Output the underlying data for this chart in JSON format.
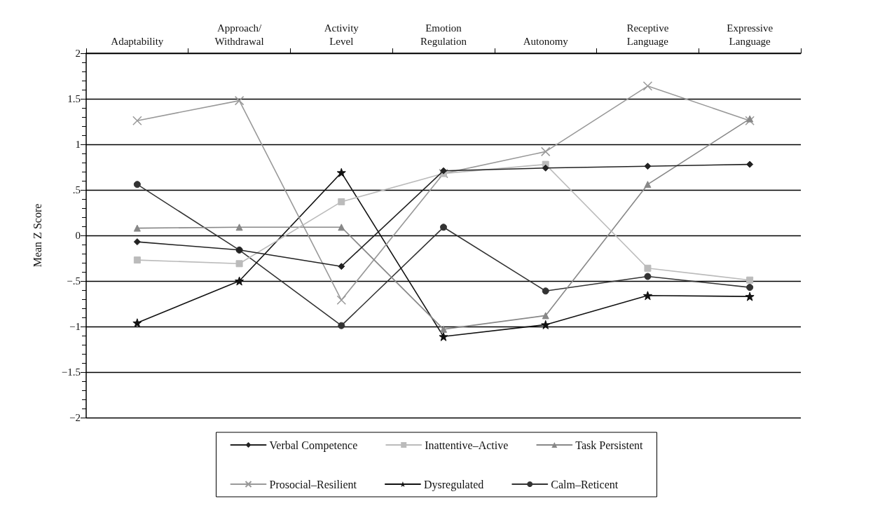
{
  "chart_data": {
    "type": "line",
    "ylabel": "Mean Z Score",
    "categories": [
      "Adaptability",
      "Approach/Withdrawal",
      "Activity Level",
      "Emotion Regulation",
      "Autonomy",
      "Receptive Language",
      "Expressive Language"
    ],
    "series": [
      {
        "name": "Verbal Competence",
        "color": "#222222",
        "marker": "diamond",
        "values": [
          -0.07,
          -0.16,
          -0.34,
          0.71,
          0.74,
          0.76,
          0.78
        ]
      },
      {
        "name": "Inattentive–Active",
        "color": "#bbbbbb",
        "marker": "square",
        "values": [
          -0.27,
          -0.31,
          0.37,
          0.68,
          0.78,
          -0.36,
          -0.49
        ]
      },
      {
        "name": "Task Persistent",
        "color": "#888888",
        "marker": "triangle",
        "values": [
          0.08,
          0.09,
          0.09,
          -1.03,
          -0.88,
          0.56,
          1.28
        ]
      },
      {
        "name": "Prosocial–Resilient",
        "color": "#999999",
        "marker": "cross",
        "values": [
          1.26,
          1.48,
          -0.71,
          0.68,
          0.92,
          1.64,
          1.26
        ]
      },
      {
        "name": "Dysregulated",
        "color": "#111111",
        "marker": "star",
        "values": [
          -0.96,
          -0.5,
          0.69,
          -1.11,
          -0.98,
          -0.66,
          -0.67
        ]
      },
      {
        "name": "Calm–Reticent",
        "color": "#333333",
        "marker": "circle",
        "values": [
          0.56,
          -0.16,
          -0.99,
          0.09,
          -0.61,
          -0.45,
          -0.57
        ]
      }
    ],
    "ylim": [
      -2,
      2
    ],
    "yticks": [
      {
        "value": -2,
        "label": "−2"
      },
      {
        "value": -1.5,
        "label": "−1.5"
      },
      {
        "value": -1,
        "label": "−1"
      },
      {
        "value": -0.5,
        "label": "−.5"
      },
      0,
      {
        "value": 0.5,
        "label": ".5"
      },
      1,
      1.5,
      2
    ],
    "grid": "y",
    "legend": "bottom",
    "line_style": "solid"
  }
}
